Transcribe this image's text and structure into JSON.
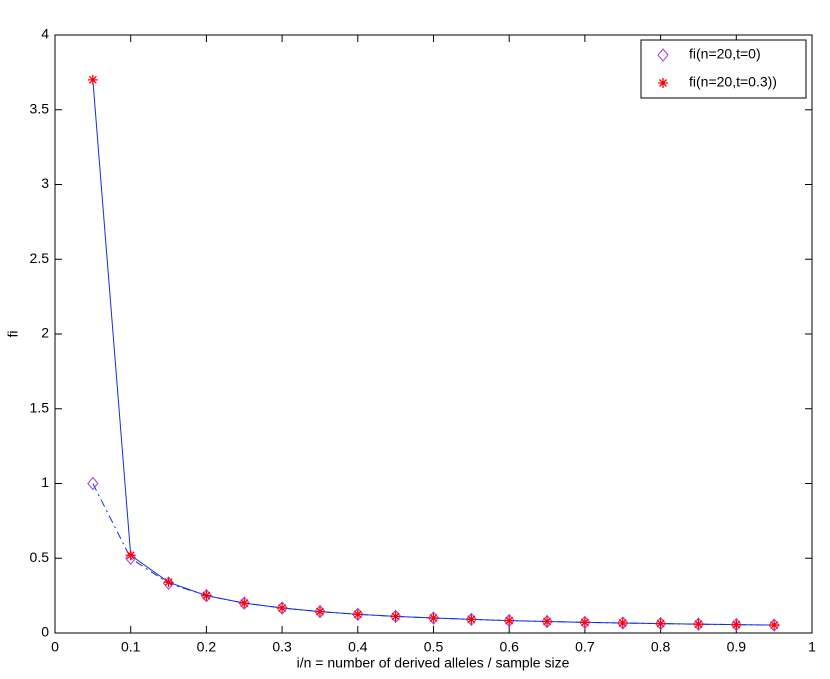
{
  "chart_data": {
    "type": "line",
    "xlabel": "i/n = number of derived alleles / sample size",
    "ylabel": "fi",
    "x": [
      0.05,
      0.1,
      0.15,
      0.2,
      0.25,
      0.3,
      0.35,
      0.4,
      0.45,
      0.5,
      0.55,
      0.6,
      0.65,
      0.7,
      0.75,
      0.8,
      0.85,
      0.9,
      0.95
    ],
    "series": [
      {
        "name": "fi(n=20,t=0)",
        "color": "#a040e0",
        "line_color": "#1030e0",
        "line_style": "dashdot",
        "marker": "diamond",
        "values": [
          1,
          0.5,
          0.333,
          0.25,
          0.2,
          0.167,
          0.143,
          0.125,
          0.111,
          0.1,
          0.091,
          0.083,
          0.077,
          0.071,
          0.067,
          0.063,
          0.059,
          0.056,
          0.053
        ]
      },
      {
        "name": "fi(n=20,t=0.3))",
        "color": "#ff0000",
        "line_color": "#1030e0",
        "line_style": "solid",
        "marker": "asterisk",
        "values": [
          3.7,
          0.52,
          0.34,
          0.25,
          0.2,
          0.167,
          0.143,
          0.125,
          0.111,
          0.1,
          0.091,
          0.083,
          0.077,
          0.071,
          0.067,
          0.063,
          0.059,
          0.056,
          0.053
        ]
      }
    ],
    "xlim": [
      0,
      1
    ],
    "xticks": [
      0,
      0.1,
      0.2,
      0.3,
      0.4,
      0.5,
      0.6,
      0.7,
      0.8,
      0.9,
      1
    ],
    "ylim": [
      0,
      4
    ],
    "yticks": [
      0,
      0.5,
      1,
      1.5,
      2,
      2.5,
      3,
      3.5,
      4
    ],
    "legend": "top-right"
  }
}
